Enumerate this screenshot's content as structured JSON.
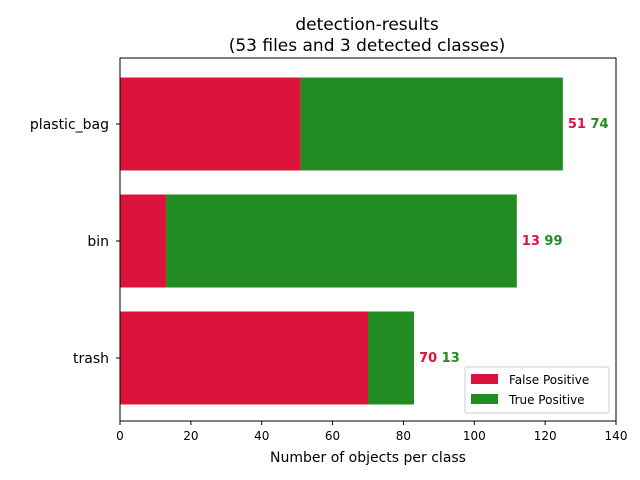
{
  "chart_data": {
    "type": "bar",
    "orientation": "horizontal",
    "stacked": true,
    "title": "detection-results",
    "subtitle": "(53 files and 3 detected classes)",
    "xlabel": "Number of objects per class",
    "ylabel": "",
    "xlim": [
      0,
      140
    ],
    "xticks": [
      "0",
      "20",
      "40",
      "60",
      "80",
      "100",
      "120",
      "140"
    ],
    "categories": [
      "plastic_bag",
      "bin",
      "trash"
    ],
    "series": [
      {
        "name": "False Positive",
        "color": "#dc143c",
        "values": [
          51,
          13,
          70
        ]
      },
      {
        "name": "True Positive",
        "color": "#228b22",
        "values": [
          74,
          99,
          13
        ]
      }
    ],
    "grid": false,
    "legend_position": "bottom-right"
  }
}
